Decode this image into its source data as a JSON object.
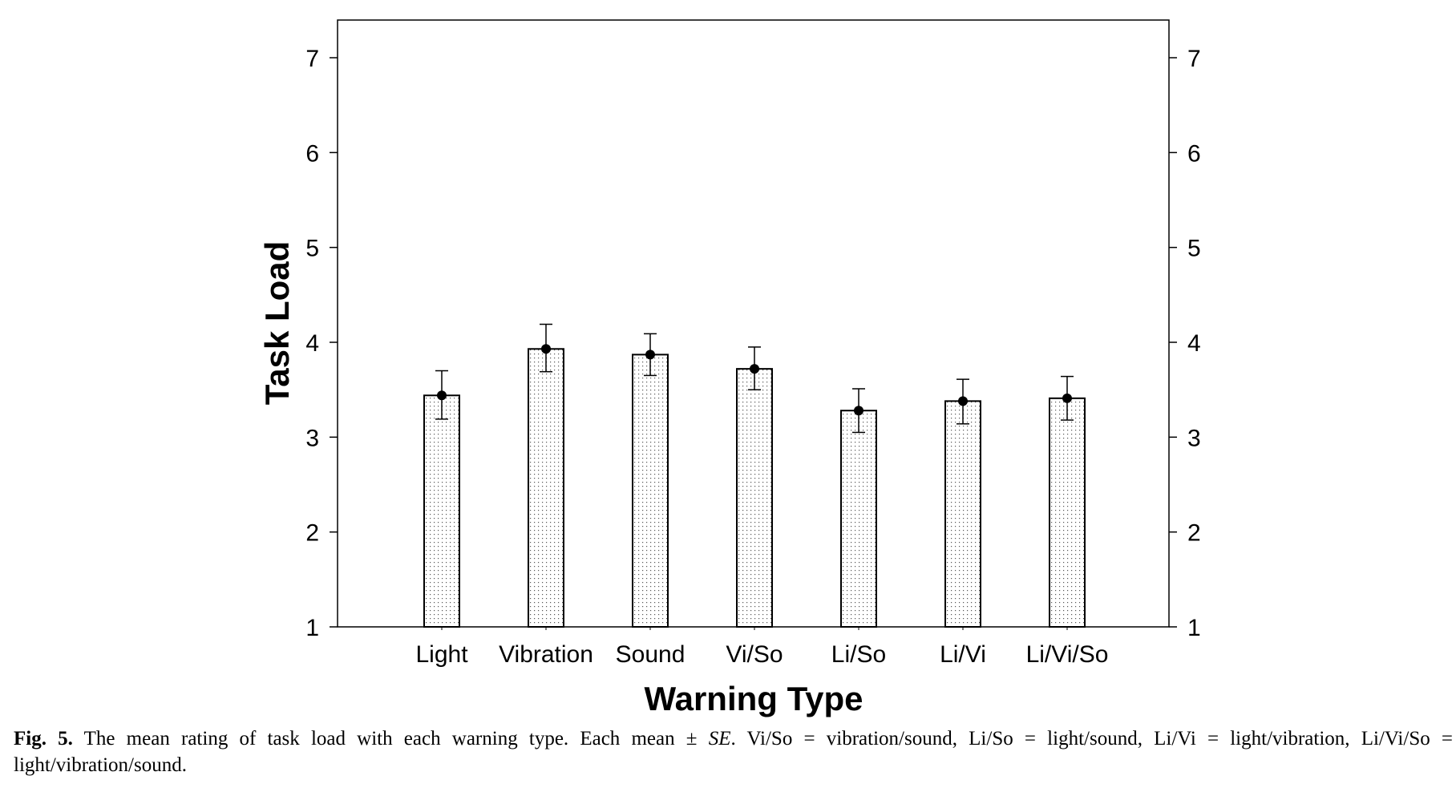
{
  "chart_data": {
    "type": "bar",
    "categories": [
      "Light",
      "Vibration",
      "Sound",
      "Vi/So",
      "Li/So",
      "Li/Vi",
      "Li/Vi/So"
    ],
    "values": [
      3.44,
      3.93,
      3.87,
      3.72,
      3.28,
      3.38,
      3.41
    ],
    "error_low": [
      3.19,
      3.69,
      3.65,
      3.5,
      3.05,
      3.14,
      3.18
    ],
    "error_high": [
      3.7,
      4.19,
      4.09,
      3.95,
      3.51,
      3.61,
      3.64
    ],
    "xlabel": "Warning Type",
    "ylabel": "Task Load",
    "ylim": [
      1,
      7.4
    ],
    "yticks": [
      1,
      2,
      3,
      4,
      5,
      6,
      7
    ],
    "right_axis_ticks": true,
    "grid": false,
    "bar_fill": "dotted",
    "colors": {
      "bar_border": "#000000",
      "bar_dots": "#555555",
      "axis": "#000000"
    }
  },
  "caption": {
    "label": "Fig. 5.",
    "text_before_se": " The mean rating of task load with each warning type. Each mean ± ",
    "se": "SE",
    "text_after_se": ". Vi/So = vibration/sound, Li/So = light/sound, Li/Vi = light/vibration, Li/Vi/So = light/vibration/sound."
  }
}
